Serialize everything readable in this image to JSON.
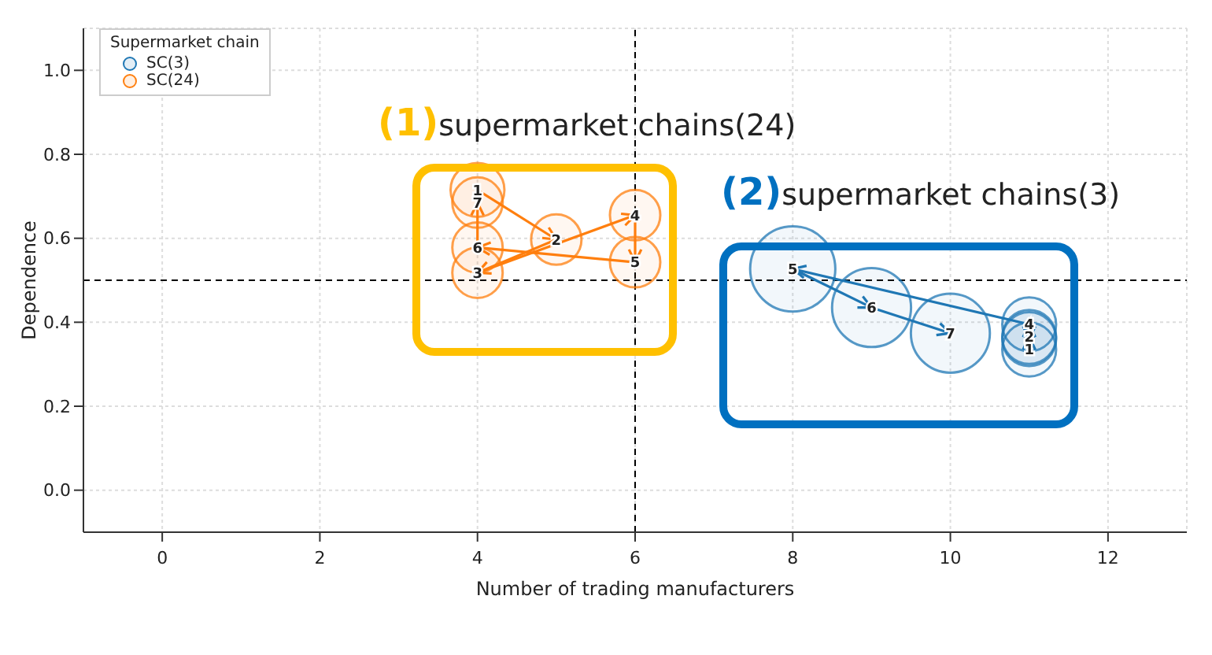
{
  "chart_data": {
    "type": "bubble",
    "xlabel": "Number of trading manufacturers",
    "ylabel": "Dependence",
    "legend_title": "Supermarket chain",
    "series": [
      {
        "name": "SC(3)",
        "color": "#1f77b4",
        "x": [
          11,
          11,
          11,
          11,
          8,
          9,
          10
        ],
        "values": [
          0.335,
          0.365,
          0.36,
          0.395,
          0.527,
          0.435,
          0.374
        ],
        "sizes": [
          0.4,
          0.4,
          0.4,
          0.4,
          1,
          0.86,
          0.86
        ]
      },
      {
        "name": "SC(24)",
        "color": "#ff7f0e",
        "x": [
          4,
          5,
          4,
          6,
          6,
          4,
          4
        ],
        "values": [
          0.715,
          0.597,
          0.518,
          0.655,
          0.543,
          0.578,
          0.685
        ],
        "sizes": [
          0.4,
          0.35,
          0.35,
          0.35,
          0.35,
          0.35,
          0.35
        ]
      }
    ],
    "annotations": [
      "(1)supermarket chains(24)",
      "(2)supermarket chains(3)",
      {
        "text": "1",
        "x": 11,
        "y": 0.335
      },
      {
        "text": "2",
        "x": 11,
        "y": 0.365
      },
      {
        "text": "4",
        "x": 11,
        "y": 0.395
      },
      {
        "text": "5",
        "x": 8,
        "y": 0.527
      },
      {
        "text": "6",
        "x": 9,
        "y": 0.435
      },
      {
        "text": "7",
        "x": 10,
        "y": 0.374
      },
      {
        "text": "1",
        "x": 4,
        "y": 0.715
      },
      {
        "text": "2",
        "x": 5,
        "y": 0.597
      },
      {
        "text": "3",
        "x": 4,
        "y": 0.518
      },
      {
        "text": "4",
        "x": 6,
        "y": 0.655
      },
      {
        "text": "5",
        "x": 6,
        "y": 0.543
      },
      {
        "text": "6",
        "x": 4,
        "y": 0.578
      },
      {
        "text": "7",
        "x": 4,
        "y": 0.685
      }
    ],
    "ref_lines": [
      {
        "axis": "x",
        "value": 6,
        "line_style": "dashed",
        "color": "#000000"
      },
      {
        "axis": "y",
        "value": 0.5,
        "line_style": "dashed",
        "color": "#000000"
      }
    ],
    "xlim": [
      -1,
      13
    ],
    "xticks": [
      0,
      2,
      4,
      6,
      8,
      10,
      12
    ],
    "ylim": [
      -0.1,
      1.1
    ],
    "yticks": [
      {
        "value": 0,
        "label": "0.0"
      },
      {
        "value": 0.2,
        "label": "0.2"
      },
      {
        "value": 0.4,
        "label": "0.4"
      },
      {
        "value": 0.6,
        "label": "0.6"
      },
      {
        "value": 0.8,
        "label": "0.8"
      },
      {
        "value": 1,
        "label": "1.0"
      }
    ],
    "grid": true,
    "legend": "top left"
  }
}
